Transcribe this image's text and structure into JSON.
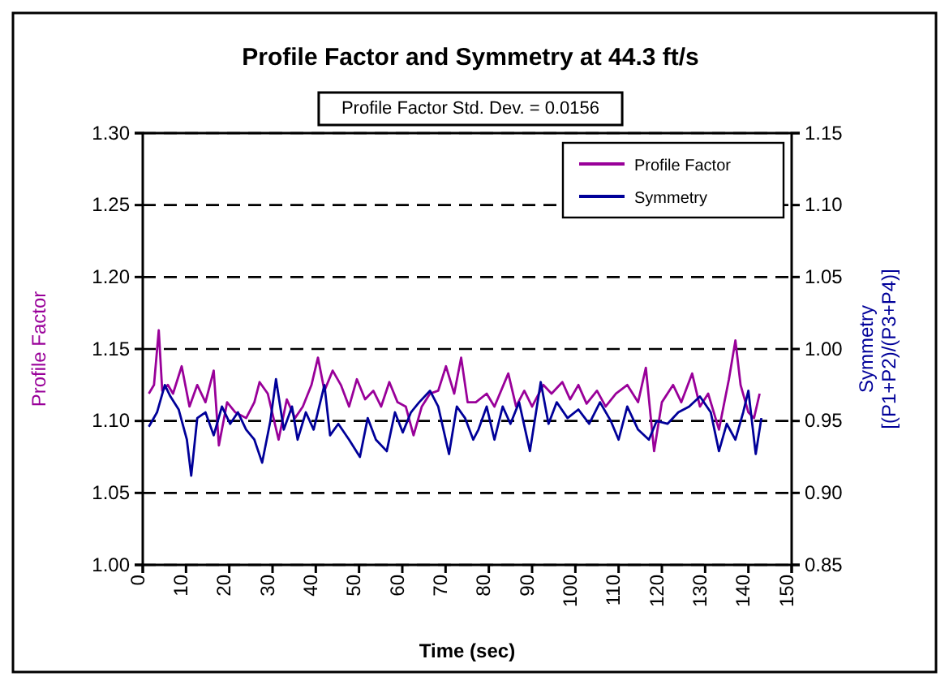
{
  "chart_data": {
    "type": "line",
    "title": "Profile Factor and Symmetry at 44.3 ft/s",
    "annotations": [
      "Profile Factor Std. Dev. = 0.0156"
    ],
    "xlabel": "Time (sec)",
    "ylabel": "Profile Factor",
    "y2label": "Symmetry\n[(P1+P2)/(P3+P4)]",
    "xlim": [
      0,
      150
    ],
    "xticks": [
      0,
      10,
      20,
      30,
      40,
      50,
      60,
      70,
      80,
      90,
      100,
      110,
      120,
      130,
      140,
      150
    ],
    "ylim": [
      1.0,
      1.3
    ],
    "yticks": [
      {
        "value": 1.0,
        "label": "1.00"
      },
      {
        "value": 1.05,
        "label": "1.05"
      },
      {
        "value": 1.1,
        "label": "1.10"
      },
      {
        "value": 1.15,
        "label": "1.15"
      },
      {
        "value": 1.2,
        "label": "1.20"
      },
      {
        "value": 1.25,
        "label": "1.25"
      },
      {
        "value": 1.3,
        "label": "1.30"
      }
    ],
    "y2lim": [
      0.85,
      1.15
    ],
    "y2ticks": [
      {
        "value": 0.85,
        "label": "0.85"
      },
      {
        "value": 0.9,
        "label": "0.90"
      },
      {
        "value": 0.95,
        "label": "0.95"
      },
      {
        "value": 1.0,
        "label": "1.00"
      },
      {
        "value": 1.05,
        "label": "1.05"
      },
      {
        "value": 1.1,
        "label": "1.10"
      },
      {
        "value": 1.15,
        "label": "1.15"
      }
    ],
    "grid": "y",
    "legend": "top right",
    "line_style": "solid",
    "marker": "none",
    "series": [
      {
        "name": "Profile Factor",
        "color": "#990099",
        "x": [
          1.4,
          2.6,
          3.7,
          4.5,
          5.8,
          7,
          9,
          10.8,
          12.6,
          14.5,
          16.4,
          17.6,
          19.5,
          21.4,
          23.9,
          25.8,
          27,
          28.9,
          31.4,
          33.3,
          35.2,
          37,
          39,
          40.5,
          42,
          43.9,
          45.8,
          47.7,
          49.5,
          51.4,
          53.3,
          55.1,
          57,
          58.9,
          60.8,
          62.6,
          64.5,
          66.4,
          68.3,
          70.1,
          72,
          73.6,
          75.1,
          77,
          79.5,
          81.3,
          84.5,
          86.3,
          88.2,
          90,
          92.6,
          94.5,
          97,
          98.8,
          100.7,
          102.6,
          105,
          107,
          109.4,
          112,
          114.5,
          116.3,
          118.2,
          120,
          122.6,
          124.5,
          127,
          128.8,
          130.7,
          133.2,
          135.5,
          137,
          138.2,
          140,
          141.3,
          142.6
        ],
        "values": [
          1.119,
          1.125,
          1.163,
          1.121,
          1.125,
          1.119,
          1.138,
          1.11,
          1.125,
          1.113,
          1.135,
          1.083,
          1.113,
          1.106,
          1.102,
          1.113,
          1.127,
          1.119,
          1.087,
          1.115,
          1.102,
          1.11,
          1.125,
          1.144,
          1.121,
          1.135,
          1.125,
          1.11,
          1.129,
          1.115,
          1.121,
          1.11,
          1.127,
          1.113,
          1.11,
          1.09,
          1.11,
          1.119,
          1.121,
          1.138,
          1.119,
          1.144,
          1.113,
          1.113,
          1.119,
          1.11,
          1.133,
          1.11,
          1.121,
          1.11,
          1.125,
          1.119,
          1.127,
          1.115,
          1.125,
          1.112,
          1.121,
          1.11,
          1.119,
          1.125,
          1.113,
          1.137,
          1.079,
          1.113,
          1.125,
          1.113,
          1.133,
          1.11,
          1.119,
          1.094,
          1.129,
          1.156,
          1.125,
          1.106,
          1.102,
          1.119
        ]
      },
      {
        "name": "Symmetry",
        "color": "#000099",
        "axis": "y2",
        "x": [
          1.4,
          3.3,
          5.1,
          6.4,
          8.3,
          10.2,
          11.2,
          12.6,
          14.5,
          16.4,
          18.3,
          20.2,
          22,
          23.9,
          25.8,
          27.6,
          29.5,
          30.8,
          32.6,
          34.5,
          35.8,
          37.7,
          39.5,
          42,
          43.3,
          45.2,
          47.7,
          50.2,
          52,
          53.9,
          56.4,
          58.3,
          60.1,
          62,
          63.9,
          66.4,
          68.3,
          70.8,
          72.6,
          74.5,
          76.4,
          77.6,
          79.5,
          81.3,
          83.2,
          85,
          87,
          89.5,
          92,
          93.8,
          95.7,
          98.2,
          100.7,
          103.2,
          105.7,
          108.2,
          110,
          112,
          114.5,
          117,
          118.8,
          121.3,
          123.8,
          126.3,
          128.8,
          131.3,
          133.2,
          135,
          137,
          138.8,
          140,
          141.7,
          143
        ],
        "values": [
          0.946,
          0.956,
          0.975,
          0.967,
          0.958,
          0.937,
          0.912,
          0.952,
          0.956,
          0.94,
          0.96,
          0.948,
          0.956,
          0.944,
          0.937,
          0.921,
          0.95,
          0.979,
          0.944,
          0.96,
          0.937,
          0.956,
          0.944,
          0.975,
          0.94,
          0.948,
          0.937,
          0.925,
          0.952,
          0.937,
          0.929,
          0.956,
          0.942,
          0.956,
          0.963,
          0.971,
          0.96,
          0.927,
          0.96,
          0.952,
          0.937,
          0.944,
          0.96,
          0.937,
          0.96,
          0.948,
          0.963,
          0.929,
          0.977,
          0.948,
          0.963,
          0.952,
          0.958,
          0.948,
          0.963,
          0.95,
          0.937,
          0.96,
          0.944,
          0.937,
          0.95,
          0.948,
          0.956,
          0.96,
          0.967,
          0.956,
          0.929,
          0.948,
          0.937,
          0.956,
          0.971,
          0.927,
          0.952
        ]
      }
    ]
  }
}
